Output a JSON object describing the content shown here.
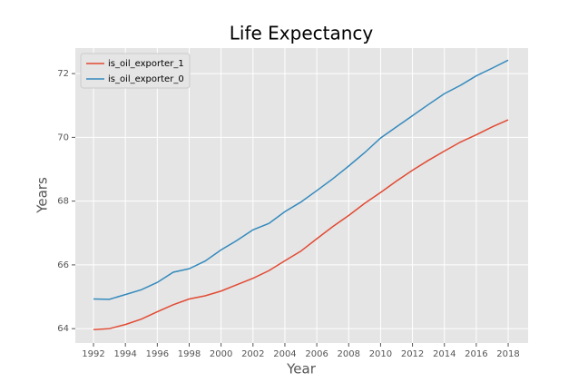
{
  "chart_data": {
    "type": "line",
    "title": "Life Expectancy",
    "x_label": "Year",
    "y_label": "Years",
    "x": [
      1992,
      1993,
      1994,
      1995,
      1996,
      1997,
      1998,
      1999,
      2000,
      2001,
      2002,
      2003,
      2004,
      2005,
      2006,
      2007,
      2008,
      2009,
      2010,
      2011,
      2012,
      2013,
      2014,
      2015,
      2016,
      2017,
      2018
    ],
    "series": [
      {
        "name": "is_oil_exporter_1",
        "color": "#E24A33",
        "values": [
          63.97,
          64.0,
          64.13,
          64.3,
          64.53,
          64.75,
          64.93,
          65.03,
          65.18,
          65.38,
          65.58,
          65.82,
          66.13,
          66.43,
          66.82,
          67.2,
          67.55,
          67.93,
          68.27,
          68.63,
          68.97,
          69.28,
          69.57,
          69.85,
          70.08,
          70.33,
          70.55
        ]
      },
      {
        "name": "is_oil_exporter_0",
        "color": "#348ABD",
        "values": [
          64.93,
          64.92,
          65.07,
          65.22,
          65.45,
          65.77,
          65.88,
          66.12,
          66.47,
          66.77,
          67.1,
          67.3,
          67.67,
          67.97,
          68.33,
          68.7,
          69.1,
          69.52,
          69.98,
          70.33,
          70.68,
          71.03,
          71.37,
          71.63,
          71.93,
          72.17,
          72.42
        ]
      }
    ],
    "xlim": [
      1990.86,
      2019.25
    ],
    "xticks": [
      1992,
      1994,
      1996,
      1998,
      2000,
      2002,
      2004,
      2006,
      2008,
      2010,
      2012,
      2014,
      2016,
      2018
    ],
    "ylim": [
      63.55,
      72.8
    ],
    "yticks": [
      64,
      66,
      68,
      70,
      72
    ],
    "grid": true,
    "legend": "upper-left"
  }
}
